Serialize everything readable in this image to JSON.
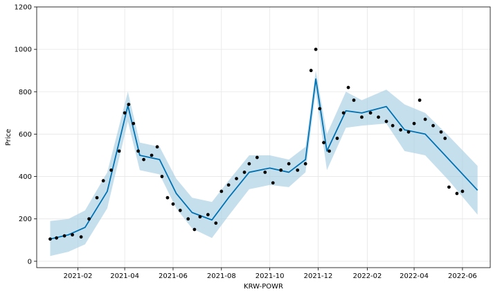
{
  "chart_data": {
    "type": "scatter",
    "title": "",
    "xlabel": "KRW-POWR",
    "ylabel": "Price",
    "x_ticks": [
      "2021-02",
      "2021-04",
      "2021-06",
      "2021-08",
      "2021-10",
      "2021-12",
      "2022-02",
      "2022-04",
      "2022-06"
    ],
    "y_ticks": [
      0,
      200,
      400,
      600,
      800,
      1000,
      1200
    ],
    "ylim": [
      -30,
      1200
    ],
    "xlim": [
      "2020-12-11",
      "2022-07-06"
    ],
    "grid": true,
    "colors": {
      "observed": "#000000",
      "forecast": "#0072B2",
      "interval": "#A6CEE3"
    },
    "series": [
      {
        "role": "observed",
        "x": [
          "2020-12-28",
          "2021-01-05",
          "2021-01-15",
          "2021-01-25",
          "2021-02-05",
          "2021-02-15",
          "2021-02-25",
          "2021-03-05",
          "2021-03-15",
          "2021-03-25",
          "2021-04-01",
          "2021-04-06",
          "2021-04-12",
          "2021-04-18",
          "2021-04-25",
          "2021-05-05",
          "2021-05-12",
          "2021-05-18",
          "2021-05-25",
          "2021-06-01",
          "2021-06-10",
          "2021-06-20",
          "2021-06-28",
          "2021-07-05",
          "2021-07-15",
          "2021-07-25",
          "2021-08-01",
          "2021-08-10",
          "2021-08-20",
          "2021-08-30",
          "2021-09-05",
          "2021-09-15",
          "2021-09-25",
          "2021-10-05",
          "2021-10-15",
          "2021-10-25",
          "2021-11-05",
          "2021-11-15",
          "2021-11-22",
          "2021-11-28",
          "2021-12-03",
          "2021-12-08",
          "2021-12-15",
          "2021-12-25",
          "2022-01-02",
          "2022-01-08",
          "2022-01-15",
          "2022-01-25",
          "2022-02-05",
          "2022-02-15",
          "2022-02-25",
          "2022-03-05",
          "2022-03-15",
          "2022-03-25",
          "2022-04-01",
          "2022-04-08",
          "2022-04-15",
          "2022-04-25",
          "2022-05-05",
          "2022-05-10",
          "2022-05-15",
          "2022-05-25",
          "2022-06-01"
        ],
        "y": [
          105,
          110,
          120,
          125,
          115,
          200,
          300,
          380,
          430,
          520,
          700,
          740,
          650,
          520,
          480,
          500,
          540,
          400,
          300,
          270,
          240,
          200,
          150,
          210,
          220,
          180,
          330,
          360,
          390,
          420,
          460,
          490,
          420,
          370,
          430,
          460,
          430,
          460,
          900,
          1000,
          720,
          560,
          520,
          580,
          700,
          820,
          760,
          680,
          700,
          680,
          660,
          640,
          620,
          610,
          650,
          760,
          670,
          640,
          610,
          580,
          350,
          320,
          330
        ]
      },
      {
        "role": "forecast",
        "x": [
          "2020-12-28",
          "2021-01-20",
          "2021-02-10",
          "2021-03-10",
          "2021-04-05",
          "2021-04-20",
          "2021-05-15",
          "2021-06-05",
          "2021-06-25",
          "2021-07-20",
          "2021-08-10",
          "2021-09-05",
          "2021-10-01",
          "2021-10-25",
          "2021-11-15",
          "2021-11-28",
          "2021-12-12",
          "2022-01-05",
          "2022-01-25",
          "2022-02-25",
          "2022-03-20",
          "2022-04-15",
          "2022-05-15",
          "2022-06-20"
        ],
        "y": [
          105,
          125,
          160,
          330,
          735,
          500,
          480,
          320,
          230,
          195,
          300,
          420,
          440,
          420,
          480,
          860,
          520,
          710,
          700,
          730,
          620,
          600,
          480,
          335
        ]
      },
      {
        "role": "interval_upper",
        "x": [
          "2020-12-28",
          "2021-01-20",
          "2021-02-10",
          "2021-03-10",
          "2021-04-05",
          "2021-04-20",
          "2021-05-15",
          "2021-06-05",
          "2021-06-25",
          "2021-07-20",
          "2021-08-10",
          "2021-09-05",
          "2021-10-01",
          "2021-10-25",
          "2021-11-15",
          "2021-11-28",
          "2021-12-12",
          "2022-01-05",
          "2022-01-25",
          "2022-02-25",
          "2022-03-20",
          "2022-04-15",
          "2022-05-15",
          "2022-06-20"
        ],
        "y": [
          190,
          200,
          240,
          420,
          800,
          560,
          540,
          390,
          300,
          280,
          380,
          500,
          500,
          480,
          540,
          900,
          600,
          800,
          760,
          810,
          740,
          700,
          590,
          450
        ]
      },
      {
        "role": "interval_lower",
        "x": [
          "2020-12-28",
          "2021-01-20",
          "2021-02-10",
          "2021-03-10",
          "2021-04-05",
          "2021-04-20",
          "2021-05-15",
          "2021-06-05",
          "2021-06-25",
          "2021-07-20",
          "2021-08-10",
          "2021-09-05",
          "2021-10-01",
          "2021-10-25",
          "2021-11-15",
          "2021-11-28",
          "2021-12-12",
          "2022-01-05",
          "2022-01-25",
          "2022-02-25",
          "2022-03-20",
          "2022-04-15",
          "2022-05-15",
          "2022-06-20"
        ],
        "y": [
          25,
          45,
          80,
          250,
          660,
          430,
          410,
          250,
          155,
          110,
          215,
          340,
          360,
          350,
          420,
          800,
          430,
          630,
          640,
          650,
          520,
          500,
          380,
          220
        ]
      }
    ]
  }
}
